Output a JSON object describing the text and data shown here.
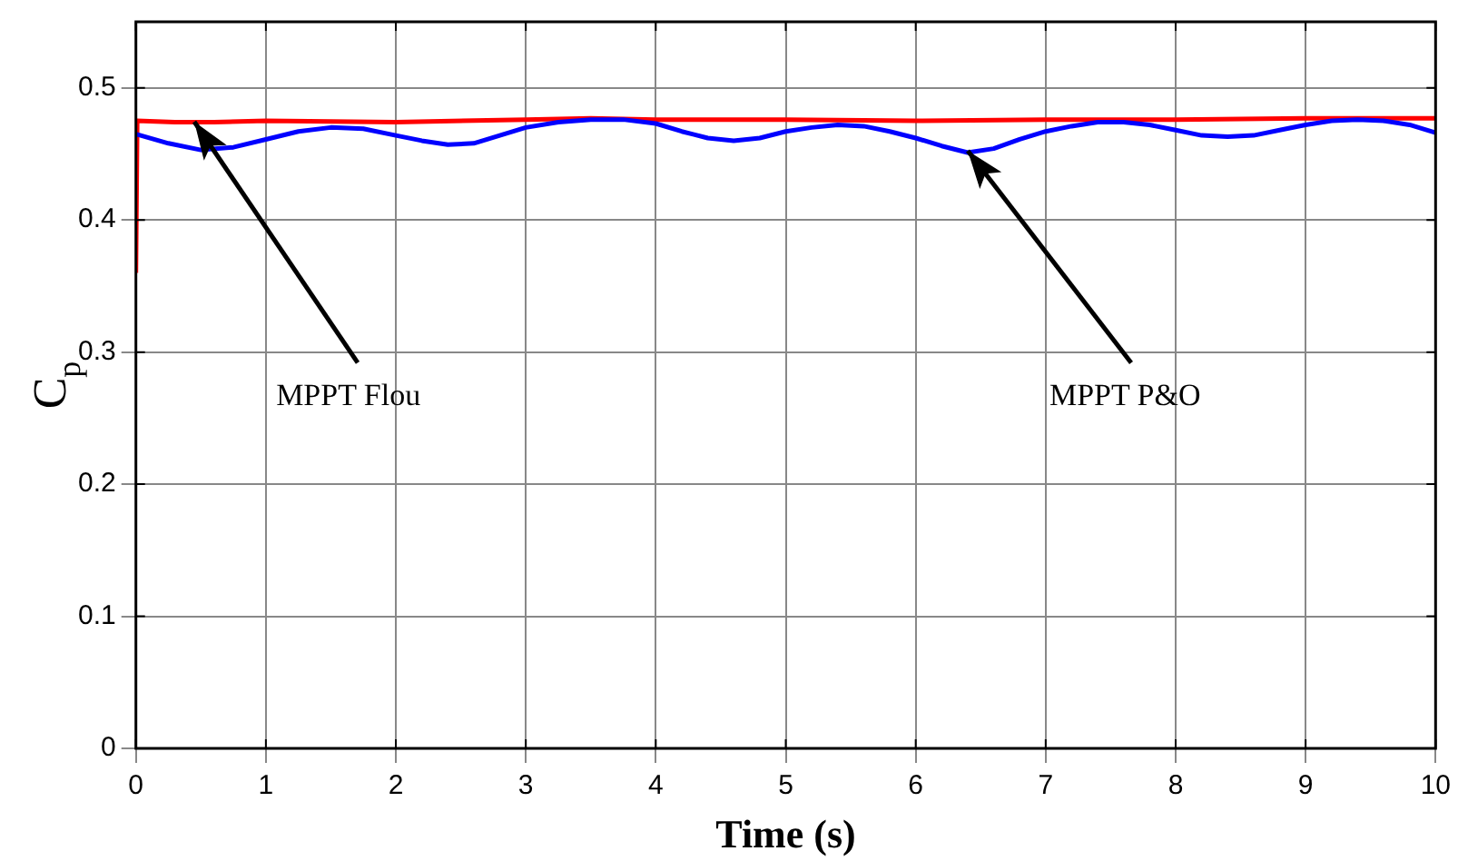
{
  "chart_data": {
    "type": "line",
    "xlabel": "Time (s)",
    "ylabel": "C$_{p}$",
    "xlim": [
      0,
      10
    ],
    "xticks": [
      0,
      1,
      2,
      3,
      4,
      5,
      6,
      7,
      8,
      9,
      10
    ],
    "ylim": [
      0,
      0.55
    ],
    "yticks": [
      0,
      0.1,
      0.2,
      0.3,
      0.4,
      0.5
    ],
    "grid": true,
    "line_style": "solid",
    "marker": "none",
    "series": [
      {
        "color": "#0000ff",
        "x": [
          0,
          0.25,
          0.5,
          0.75,
          1,
          1.25,
          1.5,
          1.75,
          2,
          2.2,
          2.4,
          2.6,
          2.8,
          3,
          3.25,
          3.5,
          3.75,
          4,
          4.2,
          4.4,
          4.6,
          4.8,
          5,
          5.2,
          5.4,
          5.6,
          5.8,
          6,
          6.2,
          6.4,
          6.6,
          6.8,
          7,
          7.2,
          7.4,
          7.6,
          7.8,
          8,
          8.2,
          8.4,
          8.6,
          8.8,
          9,
          9.2,
          9.4,
          9.6,
          9.8,
          10
        ],
        "values": [
          0.465,
          0.458,
          0.453,
          0.455,
          0.461,
          0.467,
          0.47,
          0.469,
          0.464,
          0.46,
          0.457,
          0.458,
          0.464,
          0.47,
          0.474,
          0.476,
          0.476,
          0.473,
          0.467,
          0.462,
          0.46,
          0.462,
          0.467,
          0.47,
          0.472,
          0.471,
          0.467,
          0.462,
          0.456,
          0.451,
          0.454,
          0.461,
          0.467,
          0.471,
          0.474,
          0.474,
          0.472,
          0.468,
          0.464,
          0.463,
          0.464,
          0.468,
          0.472,
          0.475,
          0.476,
          0.475,
          0.472,
          0.466
        ]
      },
      {
        "color": "#ff0000",
        "x": [
          0,
          0.01,
          0.3,
          0.6,
          1,
          2,
          3,
          3.5,
          4,
          5,
          6,
          7,
          8,
          9,
          10
        ],
        "values": [
          0.36,
          0.475,
          0.474,
          0.474,
          0.475,
          0.474,
          0.476,
          0.477,
          0.476,
          0.476,
          0.475,
          0.476,
          0.476,
          0.477,
          0.477
        ]
      }
    ],
    "annotations": [
      {
        "text": "MPPT Flou",
        "x": 0.45,
        "y": 0.474
      },
      {
        "text": "MPPT P&O",
        "x": 6.4,
        "y": 0.452
      }
    ]
  }
}
